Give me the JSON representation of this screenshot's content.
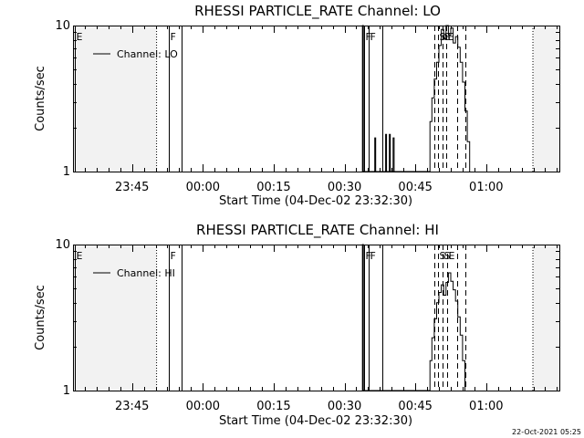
{
  "footer": {
    "timestamp": "22-Oct-2021 05:25"
  },
  "chart_data": [
    {
      "type": "line",
      "title": "RHESSI PARTICLE_RATE Channel: LO",
      "xlabel": "Start Time (04-Dec-02 23:32:30)",
      "ylabel": "Counts/sec",
      "yscale": "log",
      "ylim": [
        1,
        10
      ],
      "xlim_minutes": [
        0,
        103
      ],
      "x_ticks": [
        {
          "t": 12.5,
          "label": "23:45"
        },
        {
          "t": 27.5,
          "label": "00:00"
        },
        {
          "t": 42.5,
          "label": "00:15"
        },
        {
          "t": 57.5,
          "label": "00:30"
        },
        {
          "t": 72.5,
          "label": "00:45"
        },
        {
          "t": 87.5,
          "label": "01:00"
        }
      ],
      "y_ticks": [
        {
          "v": 1,
          "label": "1"
        },
        {
          "v": 10,
          "label": "10"
        }
      ],
      "legend": {
        "position": "top-left",
        "entries": [
          "Channel: LO"
        ]
      },
      "shaded_regions_minutes": [
        [
          0,
          17.7
        ],
        [
          97.4,
          103
        ]
      ],
      "event_lines": [
        {
          "t": 0.3,
          "label": "E",
          "style": "solid"
        },
        {
          "t": 20.3,
          "label": "F",
          "style": "solid"
        },
        {
          "t": 23.0,
          "label": "",
          "style": "solid"
        },
        {
          "t": 61.7,
          "label": "F",
          "style": "solid"
        },
        {
          "t": 62.7,
          "label": "F",
          "style": "solid"
        },
        {
          "t": 65.6,
          "label": "",
          "style": "solid"
        },
        {
          "t": 76.5,
          "label": "",
          "style": "dashed"
        },
        {
          "t": 77.3,
          "label": "S",
          "style": "dashed"
        },
        {
          "t": 78.2,
          "label": "S",
          "style": "dashed"
        },
        {
          "t": 79.0,
          "label": "E",
          "style": "dashed"
        },
        {
          "t": 81.4,
          "label": "",
          "style": "dashed"
        },
        {
          "t": 83.0,
          "label": "",
          "style": "dashed"
        }
      ],
      "series": [
        {
          "name": "Channel: LO",
          "points": [
            [
              61.3,
              1
            ],
            [
              61.3,
              10
            ],
            [
              61.5,
              10
            ],
            [
              61.5,
              1
            ],
            [
              63.9,
              1
            ],
            [
              63.9,
              1.7
            ],
            [
              64.1,
              1.7
            ],
            [
              64.1,
              1
            ],
            [
              66.2,
              1
            ],
            [
              66.2,
              1.8
            ],
            [
              66.4,
              1.8
            ],
            [
              66.4,
              1
            ],
            [
              67.0,
              1
            ],
            [
              67.0,
              1.8
            ],
            [
              67.2,
              1.8
            ],
            [
              67.2,
              1
            ],
            [
              67.8,
              1
            ],
            [
              67.8,
              1.7
            ],
            [
              68.0,
              1.7
            ],
            [
              68.0,
              1
            ],
            [
              75.6,
              1
            ],
            [
              75.6,
              2.2
            ],
            [
              76.0,
              2.2
            ],
            [
              76.0,
              3.2
            ],
            [
              76.5,
              3.2
            ],
            [
              76.5,
              4.3
            ],
            [
              77.0,
              4.3
            ],
            [
              77.0,
              5.6
            ],
            [
              77.5,
              5.6
            ],
            [
              77.5,
              7.3
            ],
            [
              78.0,
              7.3
            ],
            [
              78.0,
              9.4
            ],
            [
              78.5,
              9.4
            ],
            [
              78.5,
              8.1
            ],
            [
              79.0,
              8.1
            ],
            [
              79.0,
              10
            ],
            [
              79.5,
              10
            ],
            [
              79.5,
              8.6
            ],
            [
              80.0,
              8.6
            ],
            [
              80.0,
              9.6
            ],
            [
              80.5,
              9.6
            ],
            [
              80.5,
              7.6
            ],
            [
              81.0,
              7.6
            ],
            [
              81.0,
              8.4
            ],
            [
              81.5,
              8.4
            ],
            [
              81.5,
              7.1
            ],
            [
              82.0,
              7.1
            ],
            [
              82.0,
              5.6
            ],
            [
              82.5,
              5.6
            ],
            [
              82.5,
              4.1
            ],
            [
              83.0,
              4.1
            ],
            [
              83.0,
              2.6
            ],
            [
              83.5,
              2.6
            ],
            [
              83.5,
              1.6
            ],
            [
              84.0,
              1.6
            ],
            [
              84.0,
              1
            ]
          ]
        }
      ]
    },
    {
      "type": "line",
      "title": "RHESSI PARTICLE_RATE Channel: HI",
      "xlabel": "Start Time (04-Dec-02 23:32:30)",
      "ylabel": "Counts/sec",
      "yscale": "log",
      "ylim": [
        1,
        10
      ],
      "xlim_minutes": [
        0,
        103
      ],
      "x_ticks": [
        {
          "t": 12.5,
          "label": "23:45"
        },
        {
          "t": 27.5,
          "label": "00:00"
        },
        {
          "t": 42.5,
          "label": "00:15"
        },
        {
          "t": 57.5,
          "label": "00:30"
        },
        {
          "t": 72.5,
          "label": "00:45"
        },
        {
          "t": 87.5,
          "label": "01:00"
        }
      ],
      "y_ticks": [
        {
          "v": 1,
          "label": "1"
        },
        {
          "v": 10,
          "label": "10"
        }
      ],
      "legend": {
        "position": "top-left",
        "entries": [
          "Channel: HI"
        ]
      },
      "shaded_regions_minutes": [
        [
          0,
          17.7
        ],
        [
          97.4,
          103
        ]
      ],
      "event_lines": [
        {
          "t": 0.3,
          "label": "E",
          "style": "solid"
        },
        {
          "t": 20.3,
          "label": "F",
          "style": "solid"
        },
        {
          "t": 23.0,
          "label": "",
          "style": "solid"
        },
        {
          "t": 61.7,
          "label": "F",
          "style": "solid"
        },
        {
          "t": 62.7,
          "label": "F",
          "style": "solid"
        },
        {
          "t": 65.6,
          "label": "",
          "style": "solid"
        },
        {
          "t": 76.5,
          "label": "",
          "style": "dashed"
        },
        {
          "t": 77.3,
          "label": "S",
          "style": "dashed"
        },
        {
          "t": 78.2,
          "label": "S",
          "style": "dashed"
        },
        {
          "t": 79.3,
          "label": "E",
          "style": "dashed"
        },
        {
          "t": 81.4,
          "label": "",
          "style": "dashed"
        },
        {
          "t": 83.0,
          "label": "",
          "style": "dashed"
        }
      ],
      "series": [
        {
          "name": "Channel: HI",
          "points": [
            [
              61.3,
              1
            ],
            [
              61.3,
              10
            ],
            [
              61.5,
              10
            ],
            [
              61.5,
              1
            ],
            [
              75.6,
              1
            ],
            [
              75.6,
              1.6
            ],
            [
              76.0,
              1.6
            ],
            [
              76.0,
              2.3
            ],
            [
              76.5,
              2.3
            ],
            [
              76.5,
              3.1
            ],
            [
              77.0,
              3.1
            ],
            [
              77.0,
              4.0
            ],
            [
              77.5,
              4.0
            ],
            [
              77.5,
              4.7
            ],
            [
              78.0,
              4.7
            ],
            [
              78.0,
              5.3
            ],
            [
              78.5,
              5.3
            ],
            [
              78.5,
              4.5
            ],
            [
              79.0,
              4.5
            ],
            [
              79.0,
              5.5
            ],
            [
              79.5,
              5.5
            ],
            [
              79.5,
              6.4
            ],
            [
              80.0,
              6.4
            ],
            [
              80.0,
              5.6
            ],
            [
              80.5,
              5.6
            ],
            [
              80.5,
              4.9
            ],
            [
              81.0,
              4.9
            ],
            [
              81.0,
              4.1
            ],
            [
              81.5,
              4.1
            ],
            [
              81.5,
              3.2
            ],
            [
              82.0,
              3.2
            ],
            [
              82.0,
              2.4
            ],
            [
              82.5,
              2.4
            ],
            [
              82.5,
              1.6
            ],
            [
              83.0,
              1.6
            ],
            [
              83.0,
              1
            ]
          ]
        }
      ]
    }
  ]
}
